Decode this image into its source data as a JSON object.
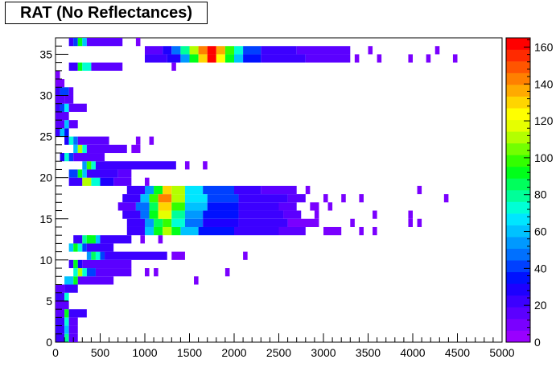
{
  "title": "RAT (No Reflectances)",
  "chart_data": {
    "type": "heatmap",
    "title": "RAT (No Reflectances)",
    "xlabel": "",
    "ylabel": "",
    "xlim": [
      0,
      5000
    ],
    "ylim": [
      0,
      36
    ],
    "x_ticks": [
      "0",
      "500",
      "1000",
      "1500",
      "2000",
      "2500",
      "3000",
      "3500",
      "4000",
      "4500",
      "5000"
    ],
    "y_ticks": [
      "0",
      "5",
      "10",
      "15",
      "20",
      "25",
      "30",
      "35"
    ],
    "colorbar": {
      "range": [
        0,
        165
      ],
      "ticks": [
        "0",
        "20",
        "40",
        "60",
        "80",
        "100",
        "120",
        "140",
        "160"
      ],
      "palette": [
        "#9900ff",
        "#7a00ff",
        "#5b00ff",
        "#3c00ff",
        "#1d00ff",
        "#0011ff",
        "#0040ff",
        "#0070ff",
        "#0099ff",
        "#00c2ff",
        "#00e6ff",
        "#00ffd5",
        "#00ff99",
        "#00ff5c",
        "#00ff1a",
        "#33ff00",
        "#73ff00",
        "#b3ff00",
        "#e6ff00",
        "#ffff00",
        "#ffd500",
        "#ffaa00",
        "#ff8000",
        "#ff5500",
        "#ff2a00",
        "#ff0000"
      ]
    },
    "bin_width_x": 50,
    "bin_height_y": 1,
    "rows": [
      {
        "y": 0,
        "cells": [
          [
            0,
            100,
            25
          ],
          [
            100,
            150,
            80
          ],
          [
            150,
            250,
            15
          ]
        ]
      },
      {
        "y": 1,
        "cells": [
          [
            0,
            100,
            20
          ],
          [
            100,
            150,
            60
          ],
          [
            150,
            250,
            18
          ]
        ]
      },
      {
        "y": 2,
        "cells": [
          [
            0,
            100,
            22
          ],
          [
            100,
            150,
            70
          ],
          [
            150,
            250,
            15
          ]
        ]
      },
      {
        "y": 3,
        "cells": [
          [
            0,
            100,
            18
          ],
          [
            100,
            150,
            90
          ],
          [
            150,
            350,
            20
          ]
        ]
      },
      {
        "y": 4,
        "cells": [
          [
            0,
            150,
            15
          ]
        ]
      },
      {
        "y": 5,
        "cells": [
          [
            0,
            100,
            20
          ],
          [
            100,
            150,
            75
          ]
        ]
      },
      {
        "y": 6,
        "cells": [
          [
            0,
            100,
            18
          ],
          [
            100,
            250,
            20
          ]
        ]
      },
      {
        "y": 7,
        "cells": [
          [
            100,
            200,
            60
          ],
          [
            200,
            250,
            95
          ],
          [
            250,
            650,
            15
          ],
          [
            1550,
            1600,
            8
          ]
        ]
      },
      {
        "y": 8,
        "cells": [
          [
            200,
            250,
            70
          ],
          [
            250,
            300,
            110
          ],
          [
            300,
            350,
            70
          ],
          [
            350,
            450,
            40
          ],
          [
            450,
            850,
            15
          ],
          [
            1000,
            1050,
            8
          ],
          [
            1100,
            1150,
            8
          ],
          [
            1900,
            1950,
            8
          ]
        ]
      },
      {
        "y": 9,
        "cells": [
          [
            150,
            200,
            20
          ],
          [
            200,
            250,
            90
          ],
          [
            250,
            300,
            30
          ],
          [
            300,
            850,
            18
          ]
        ]
      },
      {
        "y": 10,
        "cells": [
          [
            350,
            400,
            55
          ],
          [
            400,
            450,
            85
          ],
          [
            450,
            500,
            70
          ],
          [
            500,
            550,
            40
          ],
          [
            550,
            1250,
            20
          ],
          [
            1300,
            1450,
            12
          ],
          [
            2100,
            2150,
            8
          ]
        ]
      },
      {
        "y": 11,
        "cells": [
          [
            150,
            200,
            60
          ],
          [
            200,
            250,
            95
          ],
          [
            250,
            300,
            70
          ],
          [
            300,
            350,
            40
          ],
          [
            350,
            650,
            20
          ]
        ]
      },
      {
        "y": 12,
        "cells": [
          [
            200,
            300,
            25
          ],
          [
            300,
            350,
            80
          ],
          [
            350,
            400,
            110
          ],
          [
            350,
            450,
            90
          ],
          [
            450,
            500,
            60
          ],
          [
            500,
            850,
            20
          ],
          [
            950,
            1000,
            12
          ],
          [
            1150,
            1200,
            10
          ]
        ]
      },
      {
        "y": 13,
        "cells": [
          [
            800,
            1000,
            25
          ],
          [
            1000,
            1100,
            60
          ],
          [
            1100,
            1200,
            95
          ],
          [
            1200,
            1300,
            110
          ],
          [
            1300,
            1400,
            90
          ],
          [
            1400,
            1600,
            60
          ],
          [
            1600,
            2000,
            35
          ],
          [
            2000,
            2500,
            25
          ],
          [
            2500,
            2800,
            15
          ],
          [
            3000,
            3200,
            10
          ],
          [
            3400,
            3450,
            8
          ],
          [
            3550,
            3600,
            8
          ]
        ]
      },
      {
        "y": 14,
        "cells": [
          [
            800,
            1000,
            20
          ],
          [
            1000,
            1100,
            55
          ],
          [
            1100,
            1200,
            85
          ],
          [
            1200,
            1300,
            100
          ],
          [
            1300,
            1450,
            75
          ],
          [
            1450,
            1650,
            50
          ],
          [
            1650,
            2050,
            30
          ],
          [
            2050,
            2600,
            20
          ],
          [
            2600,
            2950,
            12
          ],
          [
            3300,
            3350,
            8
          ],
          [
            3950,
            4000,
            8
          ],
          [
            4050,
            4100,
            8
          ]
        ]
      },
      {
        "y": 15,
        "cells": [
          [
            750,
            950,
            20
          ],
          [
            950,
            1050,
            50
          ],
          [
            1050,
            1150,
            90
          ],
          [
            1150,
            1300,
            120
          ],
          [
            1300,
            1450,
            80
          ],
          [
            1450,
            1650,
            55
          ],
          [
            1650,
            2050,
            35
          ],
          [
            2050,
            2550,
            25
          ],
          [
            2550,
            2750,
            15
          ],
          [
            2900,
            2950,
            8
          ],
          [
            3550,
            3600,
            8
          ],
          [
            3950,
            4000,
            8
          ]
        ]
      },
      {
        "y": 16,
        "cells": [
          [
            700,
            900,
            18
          ],
          [
            900,
            1050,
            45
          ],
          [
            1050,
            1150,
            85
          ],
          [
            1150,
            1300,
            130
          ],
          [
            1300,
            1450,
            100
          ],
          [
            1450,
            1700,
            60
          ],
          [
            1700,
            2050,
            35
          ],
          [
            2050,
            2500,
            25
          ],
          [
            2500,
            2700,
            15
          ],
          [
            2850,
            2950,
            8
          ],
          [
            3050,
            3100,
            8
          ]
        ]
      },
      {
        "y": 17,
        "cells": [
          [
            750,
            950,
            25
          ],
          [
            950,
            1050,
            60
          ],
          [
            1050,
            1150,
            100
          ],
          [
            1150,
            1300,
            140
          ],
          [
            1300,
            1450,
            110
          ],
          [
            1450,
            1700,
            65
          ],
          [
            1700,
            2050,
            40
          ],
          [
            2050,
            2600,
            25
          ],
          [
            2600,
            2800,
            15
          ],
          [
            3000,
            3050,
            8
          ],
          [
            3200,
            3250,
            8
          ],
          [
            3400,
            3450,
            8
          ],
          [
            4350,
            4400,
            8
          ]
        ]
      },
      {
        "y": 18,
        "cells": [
          [
            800,
            1000,
            25
          ],
          [
            1000,
            1100,
            55
          ],
          [
            1100,
            1200,
            90
          ],
          [
            1200,
            1300,
            130
          ],
          [
            1300,
            1450,
            110
          ],
          [
            1450,
            1650,
            65
          ],
          [
            1650,
            2000,
            40
          ],
          [
            2000,
            2300,
            25
          ],
          [
            2300,
            2700,
            15
          ],
          [
            2800,
            2850,
            8
          ],
          [
            4050,
            4100,
            8
          ]
        ]
      },
      {
        "y": 19,
        "cells": [
          [
            150,
            300,
            25
          ],
          [
            300,
            400,
            110
          ],
          [
            400,
            500,
            70
          ],
          [
            500,
            650,
            30
          ],
          [
            650,
            850,
            18
          ],
          [
            1000,
            1050,
            8
          ]
        ]
      },
      {
        "y": 20,
        "cells": [
          [
            150,
            250,
            40
          ],
          [
            250,
            300,
            90
          ],
          [
            300,
            350,
            60
          ],
          [
            350,
            700,
            25
          ],
          [
            700,
            850,
            15
          ]
        ]
      },
      {
        "y": 21,
        "cells": [
          [
            300,
            350,
            55
          ],
          [
            350,
            400,
            100
          ],
          [
            400,
            450,
            70
          ],
          [
            450,
            1350,
            20
          ],
          [
            1450,
            1500,
            8
          ],
          [
            1650,
            1700,
            8
          ]
        ]
      },
      {
        "y": 22,
        "cells": [
          [
            50,
            100,
            30
          ],
          [
            100,
            150,
            70
          ],
          [
            150,
            200,
            40
          ],
          [
            200,
            550,
            18
          ]
        ]
      },
      {
        "y": 23,
        "cells": [
          [
            200,
            250,
            60
          ],
          [
            250,
            300,
            110
          ],
          [
            300,
            350,
            70
          ],
          [
            350,
            800,
            18
          ],
          [
            850,
            950,
            12
          ]
        ]
      },
      {
        "y": 24,
        "cells": [
          [
            100,
            150,
            30
          ],
          [
            150,
            200,
            70
          ],
          [
            200,
            250,
            50
          ],
          [
            250,
            600,
            18
          ],
          [
            900,
            950,
            8
          ],
          [
            1050,
            1100,
            8
          ]
        ]
      },
      {
        "y": 25,
        "cells": [
          [
            0,
            50,
            20
          ],
          [
            50,
            100,
            60
          ],
          [
            100,
            150,
            35
          ]
        ]
      },
      {
        "y": 26,
        "cells": [
          [
            0,
            100,
            15
          ],
          [
            100,
            150,
            60
          ],
          [
            150,
            250,
            15
          ]
        ]
      },
      {
        "y": 27,
        "cells": [
          [
            0,
            150,
            15
          ]
        ]
      },
      {
        "y": 28,
        "cells": [
          [
            0,
            50,
            20
          ],
          [
            50,
            100,
            40
          ],
          [
            100,
            150,
            65
          ],
          [
            150,
            350,
            15
          ]
        ]
      },
      {
        "y": 29,
        "cells": [
          [
            0,
            100,
            18
          ],
          [
            100,
            200,
            15
          ]
        ]
      },
      {
        "y": 30,
        "cells": [
          [
            0,
            50,
            20
          ],
          [
            50,
            150,
            40
          ],
          [
            150,
            200,
            15
          ]
        ]
      },
      {
        "y": 31,
        "cells": [
          [
            0,
            100,
            12
          ]
        ]
      },
      {
        "y": 32,
        "cells": [
          [
            0,
            50,
            8
          ]
        ]
      },
      {
        "y": 33,
        "cells": [
          [
            150,
            250,
            25
          ],
          [
            250,
            300,
            95
          ],
          [
            300,
            400,
            70
          ],
          [
            400,
            750,
            18
          ],
          [
            1300,
            1350,
            8
          ]
        ]
      },
      {
        "y": 34,
        "cells": [
          [
            1000,
            1250,
            20
          ],
          [
            1250,
            1400,
            30
          ],
          [
            1400,
            1500,
            55
          ],
          [
            1500,
            1600,
            95
          ],
          [
            1600,
            1700,
            130
          ],
          [
            1700,
            1800,
            160
          ],
          [
            1800,
            1900,
            125
          ],
          [
            1900,
            2000,
            90
          ],
          [
            2000,
            2100,
            60
          ],
          [
            2100,
            2300,
            35
          ],
          [
            2300,
            2800,
            25
          ],
          [
            2800,
            3300,
            18
          ],
          [
            3350,
            3400,
            8
          ],
          [
            3600,
            3650,
            8
          ],
          [
            3950,
            4000,
            8
          ],
          [
            4150,
            4200,
            8
          ],
          [
            4450,
            4500,
            8
          ]
        ]
      },
      {
        "y": 35,
        "cells": [
          [
            1000,
            1200,
            18
          ],
          [
            1200,
            1300,
            28
          ],
          [
            1300,
            1400,
            45
          ],
          [
            1400,
            1500,
            80
          ],
          [
            1500,
            1600,
            110
          ],
          [
            1600,
            1700,
            145
          ],
          [
            1700,
            1800,
            160
          ],
          [
            1800,
            1900,
            135
          ],
          [
            1900,
            2000,
            100
          ],
          [
            2000,
            2100,
            70
          ],
          [
            2100,
            2300,
            40
          ],
          [
            2300,
            2700,
            25
          ],
          [
            2700,
            3300,
            18
          ],
          [
            3500,
            3550,
            8
          ],
          [
            4250,
            4300,
            8
          ]
        ]
      },
      {
        "y": 36,
        "cells": [
          [
            150,
            200,
            20
          ],
          [
            200,
            250,
            40
          ],
          [
            250,
            300,
            90
          ],
          [
            300,
            350,
            60
          ],
          [
            350,
            750,
            18
          ],
          [
            900,
            950,
            8
          ]
        ]
      }
    ]
  }
}
